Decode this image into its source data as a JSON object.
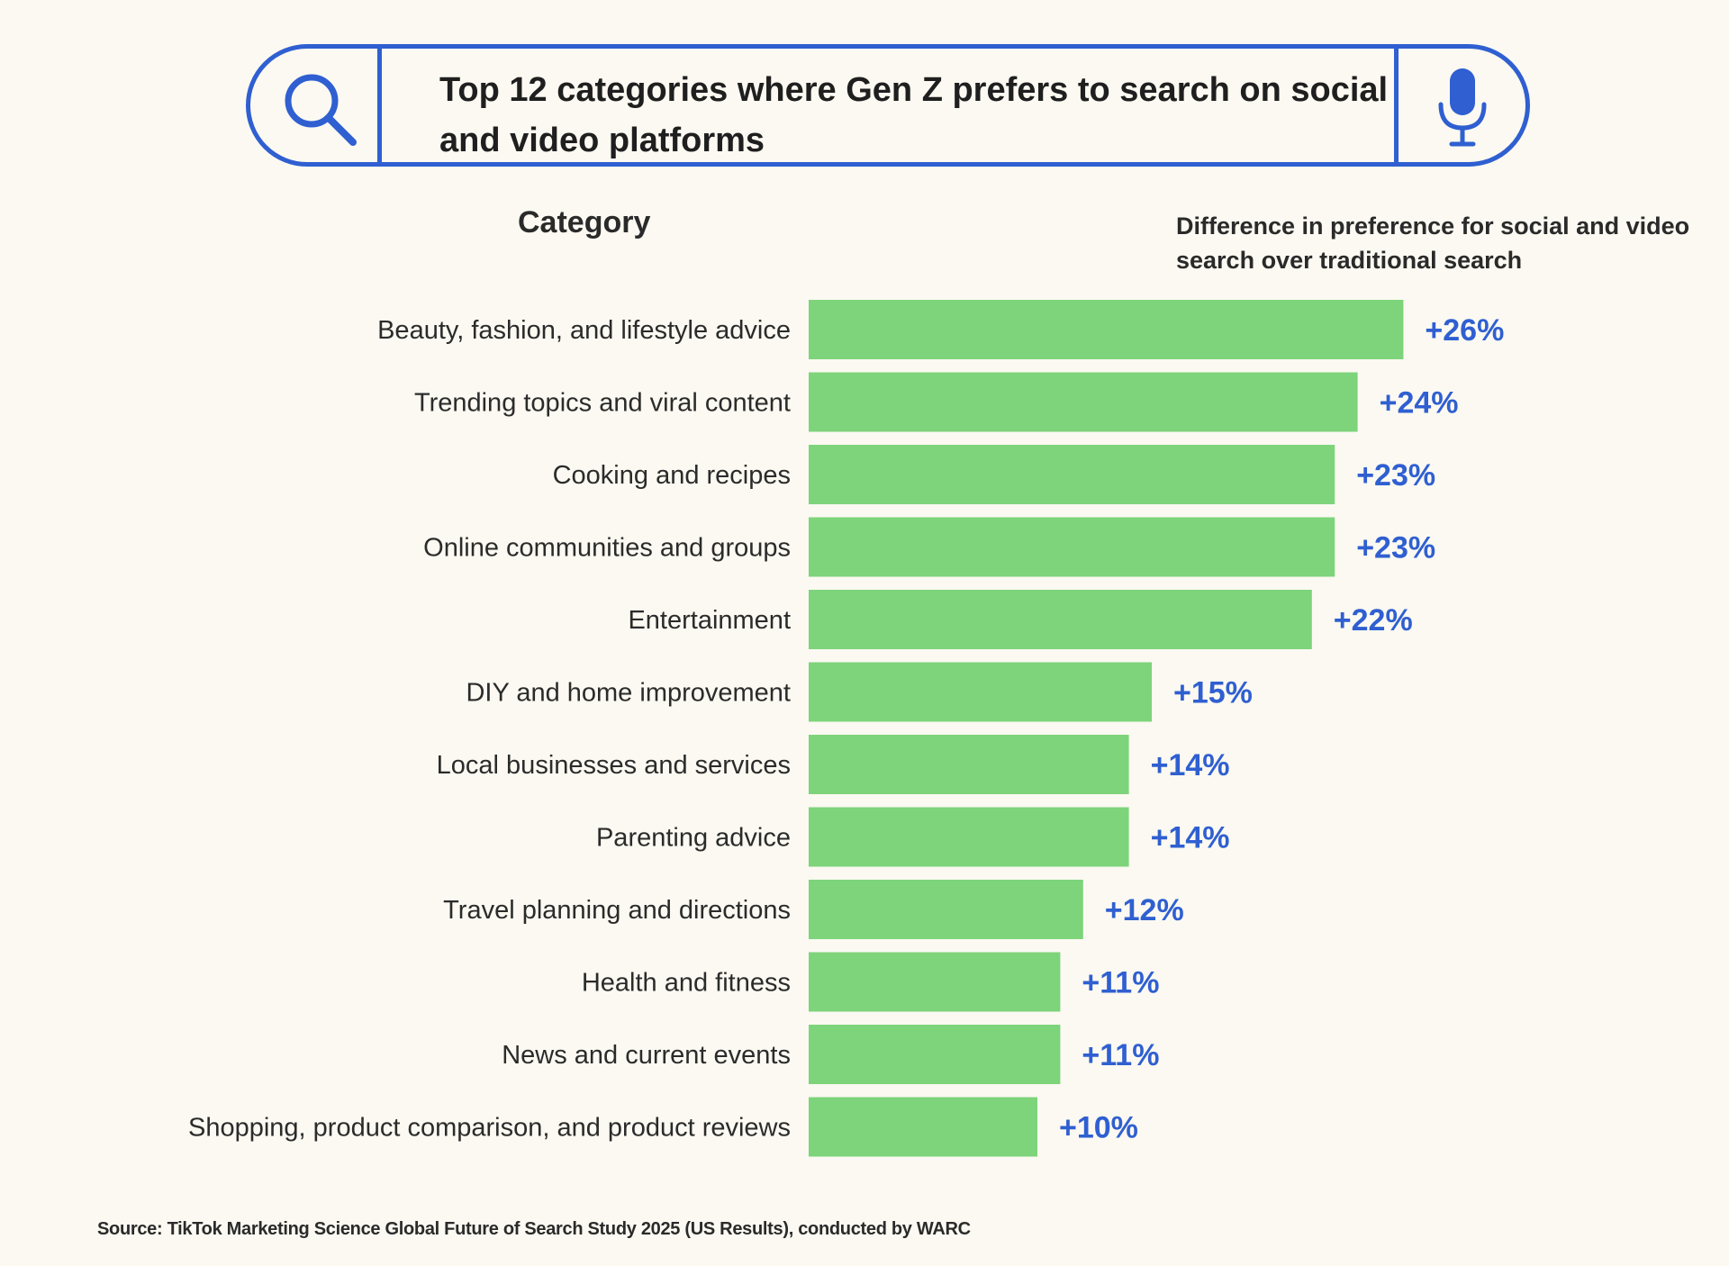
{
  "header": {
    "title": "Top 12 categories where Gen Z prefers to search on social and video platforms",
    "search_icon": "search-icon",
    "mic_icon": "microphone-icon"
  },
  "columns": {
    "category": "Category",
    "difference": "Difference in preference for social and video search over traditional search"
  },
  "colors": {
    "bar": "#7dd47a",
    "value_text": "#2f5fd1",
    "accent": "#2f5fd1",
    "background": "#fbf9f1"
  },
  "chart_data": {
    "type": "bar",
    "orientation": "horizontal",
    "title": "Top 12 categories where Gen Z prefers to search on social and video platforms",
    "xlabel": "Difference in preference for social and video search over traditional search",
    "ylabel": "Category",
    "categories": [
      "Beauty, fashion, and lifestyle advice",
      "Trending topics and viral content",
      "Cooking and recipes",
      "Online communities and groups",
      "Entertainment",
      "DIY and home improvement",
      "Local businesses and services",
      "Parenting advice",
      "Travel planning and directions",
      "Health and fitness",
      "News and current events",
      "Shopping, product comparison, and product reviews"
    ],
    "values": [
      26,
      24,
      23,
      23,
      22,
      15,
      14,
      14,
      12,
      11,
      11,
      10
    ],
    "value_labels": [
      "+26%",
      "+24%",
      "+23%",
      "+23%",
      "+22%",
      "+15%",
      "+14%",
      "+14%",
      "+12%",
      "+11%",
      "+11%",
      "+10%"
    ],
    "grid": false,
    "legend": "none"
  },
  "footer": {
    "source": "Source: TikTok Marketing Science Global Future of Search Study 2025 (US Results), conducted by WARC"
  }
}
